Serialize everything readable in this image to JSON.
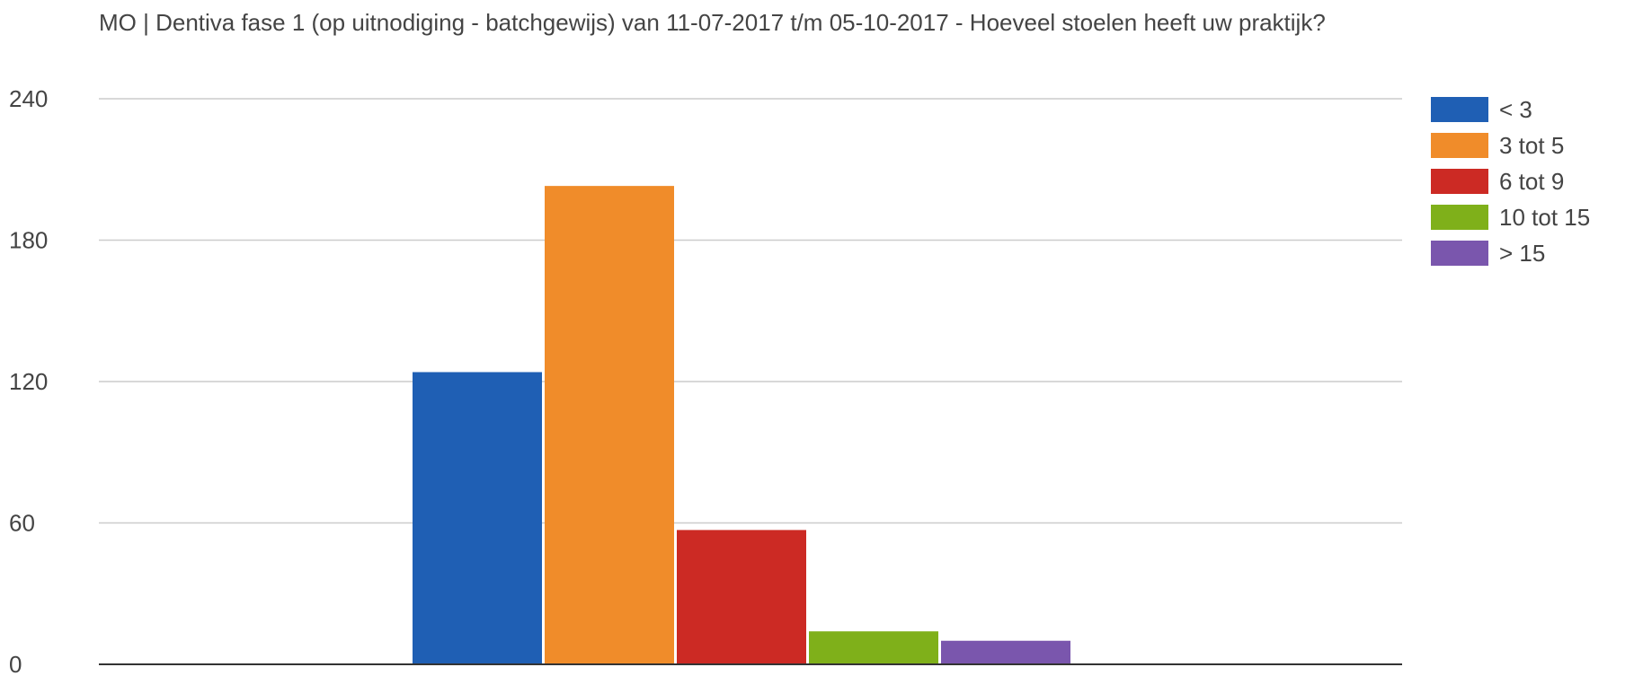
{
  "chart_data": {
    "type": "bar",
    "title": "MO | Dentiva fase 1 (op uitnodiging - batchgewijs) van 11-07-2017 t/m 05-10-2017 - Hoeveel stoelen heeft uw praktijk?",
    "xlabel": "",
    "ylabel": "",
    "ylim": [
      0,
      240
    ],
    "yticks": [
      0,
      60,
      120,
      180,
      240
    ],
    "grid": true,
    "legend_position": "right",
    "series": [
      {
        "name": "< 3",
        "value": 124,
        "color": "#1f5fb4"
      },
      {
        "name": "3 tot 5",
        "value": 203,
        "color": "#f08c2a"
      },
      {
        "name": "6 tot 9",
        "value": 57,
        "color": "#cc2a24"
      },
      {
        "name": "10 tot 15",
        "value": 14,
        "color": "#7fb01a"
      },
      {
        "name": "> 15",
        "value": 10,
        "color": "#7a56ad"
      }
    ]
  }
}
